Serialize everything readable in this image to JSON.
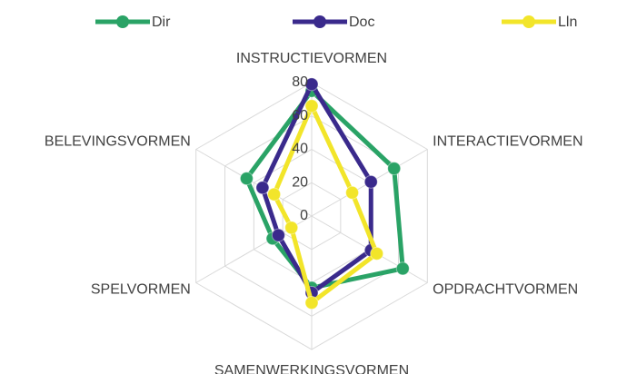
{
  "chart_data": {
    "type": "radar",
    "categories": [
      "INSTRUCTIEVORMEN",
      "INTERACTIEVORMEN",
      "OPDRACHTVORMEN",
      "SAMENWERKINGSVORMEN",
      "SPELVORMEN",
      "BELEVINGSVORMEN"
    ],
    "series": [
      {
        "name": "Dir",
        "color": "#2aa366",
        "values": [
          75,
          57,
          63,
          43,
          27,
          45
        ]
      },
      {
        "name": "Doc",
        "color": "#3a2a8c",
        "values": [
          79,
          41,
          41,
          46,
          23,
          34
        ]
      },
      {
        "name": "Lln",
        "color": "#f2e52a",
        "values": [
          66,
          28,
          45,
          52,
          14,
          26
        ]
      }
    ],
    "ylim": [
      0,
      80
    ],
    "yticks": [
      0,
      20,
      40,
      60,
      80
    ],
    "grid": true,
    "legend": "top"
  }
}
